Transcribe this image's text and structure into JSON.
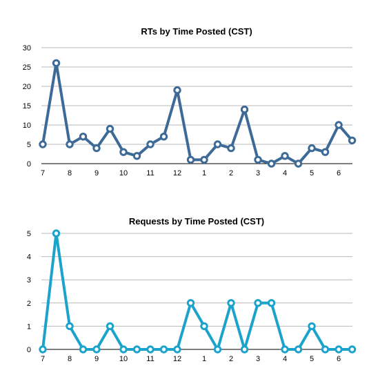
{
  "chart_data": [
    {
      "type": "line",
      "title": "RTs by Time Posted (CST)",
      "xlabel": "",
      "ylabel": "",
      "ylim": [
        0,
        30
      ],
      "yticks": [
        0,
        5,
        10,
        15,
        20,
        25,
        30
      ],
      "xticks": [
        "7",
        "8",
        "9",
        "10",
        "11",
        "12",
        "1",
        "2",
        "3",
        "4",
        "5",
        "6"
      ],
      "grid": true,
      "legend": "none",
      "series": [
        {
          "color": "#3d6a96",
          "values": [
            5,
            26,
            5,
            7,
            4,
            9,
            3,
            2,
            5,
            7,
            19,
            1,
            1,
            5,
            4,
            14,
            1,
            0,
            2,
            0,
            4,
            3,
            10,
            6
          ]
        }
      ]
    },
    {
      "type": "line",
      "title": "Requests by Time Posted (CST)",
      "xlabel": "",
      "ylabel": "",
      "ylim": [
        0,
        5
      ],
      "yticks": [
        0,
        1,
        2,
        3,
        4,
        5
      ],
      "xticks": [
        "7",
        "8",
        "9",
        "10",
        "11",
        "12",
        "1",
        "2",
        "3",
        "4",
        "5",
        "6"
      ],
      "grid": true,
      "legend": "none",
      "series": [
        {
          "color": "#1ba3cc",
          "values": [
            0,
            5,
            1,
            0,
            0,
            1,
            0,
            0,
            0,
            0,
            0,
            2,
            1,
            0,
            2,
            0,
            2,
            2,
            0,
            0,
            1,
            0,
            0,
            0
          ]
        }
      ]
    }
  ]
}
